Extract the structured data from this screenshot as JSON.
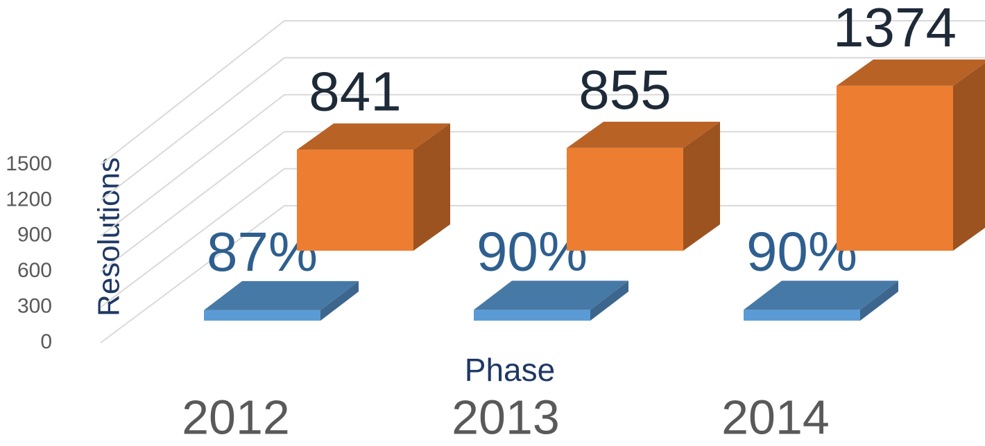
{
  "chart_data": {
    "type": "bar3d",
    "categories": [
      "2012",
      "2013",
      "2014"
    ],
    "xlabel": "Phase",
    "ylabel": "Resolutions",
    "ylim": [
      0,
      1500
    ],
    "yticks": [
      0,
      300,
      600,
      900,
      1200,
      1500
    ],
    "grid": true,
    "series": [
      {
        "color": "#5b9bd5",
        "values": [
          87,
          90,
          90
        ],
        "value_labels": [
          "87%",
          "90%",
          "90%"
        ],
        "label_color": "#2e5f8f"
      },
      {
        "color": "#ed7d31",
        "values": [
          841,
          855,
          1374
        ],
        "label_color": "#1e2a38"
      }
    ]
  }
}
